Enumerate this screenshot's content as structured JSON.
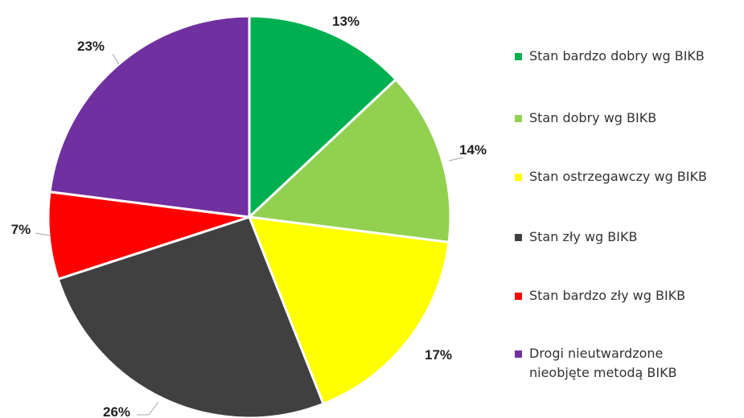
{
  "chart_data": {
    "type": "pie",
    "title": "",
    "legend_position": "right",
    "slices": [
      {
        "label": "Stan bardzo dobry wg BIKB",
        "value": 13,
        "display": "13%",
        "color": "#00B050"
      },
      {
        "label": "Stan dobry wg BIKB",
        "value": 14,
        "display": "14%",
        "color": "#92D050"
      },
      {
        "label": "Stan ostrzegawczy wg BIKB",
        "value": 17,
        "display": "17%",
        "color": "#FFFF00"
      },
      {
        "label": "Stan zły wg BIKB",
        "value": 26,
        "display": "26%",
        "color": "#404040"
      },
      {
        "label": "Stan bardzo zły wg BIKB",
        "value": 7,
        "display": "7%",
        "color": "#FF0000"
      },
      {
        "label": "Drogi nieutwardzone\nnieobjęte metodą BIKB",
        "value": 23,
        "display": "23%",
        "color": "#7030A0"
      }
    ]
  }
}
